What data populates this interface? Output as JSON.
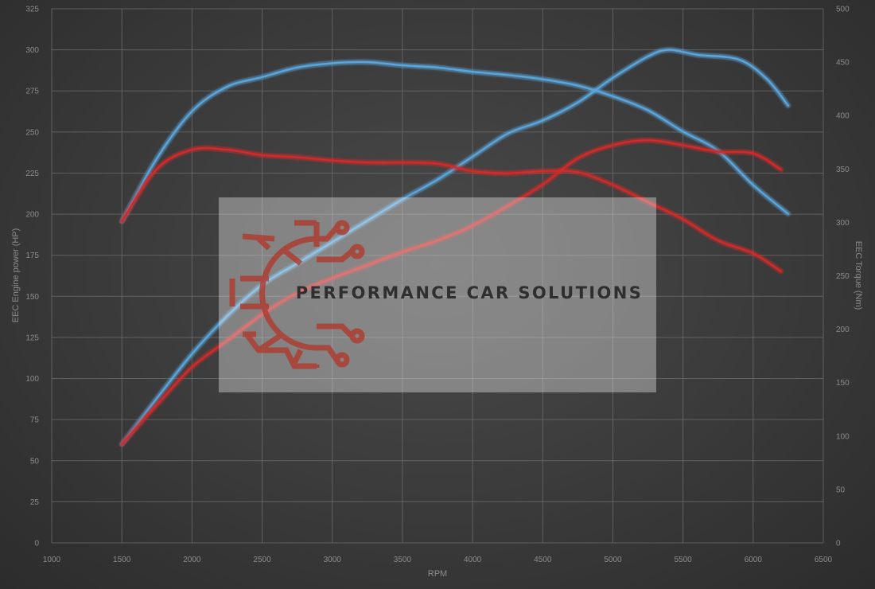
{
  "chart_data": {
    "type": "line",
    "xlabel": "RPM",
    "ylabel_left": "EEC Engine power (HP)",
    "ylabel_right": "EEC Torque (Nm)",
    "xlim": [
      1000,
      6500
    ],
    "ylim_left": [
      0,
      325
    ],
    "ylim_right": [
      0,
      500
    ],
    "x_ticks": [
      1000,
      1500,
      2000,
      2500,
      3000,
      3500,
      4000,
      4500,
      5000,
      5500,
      6000,
      6500
    ],
    "y_left_ticks": [
      0,
      25,
      50,
      75,
      100,
      125,
      150,
      175,
      200,
      225,
      250,
      275,
      300,
      325
    ],
    "y_right_ticks": [
      0,
      50,
      100,
      150,
      200,
      250,
      300,
      350,
      400,
      450,
      500
    ],
    "grid": true,
    "legend": "none",
    "series": [
      {
        "color": "#5aa5dc",
        "axis": "left",
        "points": [
          [
            1500,
            60
          ],
          [
            1750,
            88
          ],
          [
            2000,
            115
          ],
          [
            2250,
            138
          ],
          [
            2500,
            157
          ],
          [
            2750,
            170
          ],
          [
            3000,
            183
          ],
          [
            3250,
            196
          ],
          [
            3500,
            209
          ],
          [
            3750,
            221
          ],
          [
            4000,
            235
          ],
          [
            4250,
            249
          ],
          [
            4500,
            257
          ],
          [
            4750,
            268
          ],
          [
            5000,
            283
          ],
          [
            5250,
            296
          ],
          [
            5400,
            300
          ],
          [
            5600,
            297
          ],
          [
            5900,
            294
          ],
          [
            6100,
            282
          ],
          [
            6250,
            266
          ]
        ]
      },
      {
        "color": "#5aa5dc",
        "axis": "right",
        "points": [
          [
            1500,
            301
          ],
          [
            1750,
            360
          ],
          [
            2000,
            404
          ],
          [
            2250,
            427
          ],
          [
            2500,
            436
          ],
          [
            2750,
            445
          ],
          [
            3000,
            449
          ],
          [
            3250,
            450
          ],
          [
            3500,
            447
          ],
          [
            3750,
            445
          ],
          [
            4000,
            441
          ],
          [
            4250,
            438
          ],
          [
            4500,
            434
          ],
          [
            4750,
            428
          ],
          [
            5000,
            418
          ],
          [
            5250,
            405
          ],
          [
            5500,
            385
          ],
          [
            5750,
            367
          ],
          [
            6000,
            335
          ],
          [
            6250,
            308
          ]
        ]
      },
      {
        "color": "#d02a2a",
        "axis": "left",
        "points": [
          [
            1500,
            60
          ],
          [
            1750,
            84
          ],
          [
            2000,
            107
          ],
          [
            2250,
            123
          ],
          [
            2500,
            139
          ],
          [
            2750,
            152
          ],
          [
            3000,
            161
          ],
          [
            3250,
            169
          ],
          [
            3500,
            177
          ],
          [
            3750,
            184
          ],
          [
            4000,
            193
          ],
          [
            4250,
            205
          ],
          [
            4500,
            218
          ],
          [
            4750,
            234
          ],
          [
            5000,
            242
          ],
          [
            5250,
            245
          ],
          [
            5500,
            242
          ],
          [
            5750,
            238
          ],
          [
            6000,
            237
          ],
          [
            6200,
            227
          ]
        ]
      },
      {
        "color": "#d02a2a",
        "axis": "right",
        "points": [
          [
            1500,
            301
          ],
          [
            1750,
            350
          ],
          [
            2000,
            368
          ],
          [
            2250,
            368
          ],
          [
            2500,
            363
          ],
          [
            2750,
            361
          ],
          [
            3000,
            358
          ],
          [
            3250,
            356
          ],
          [
            3500,
            356
          ],
          [
            3750,
            355
          ],
          [
            4000,
            348
          ],
          [
            4250,
            346
          ],
          [
            4500,
            348
          ],
          [
            4750,
            347
          ],
          [
            5000,
            335
          ],
          [
            5250,
            319
          ],
          [
            5500,
            303
          ],
          [
            5750,
            283
          ],
          [
            6000,
            271
          ],
          [
            6200,
            254
          ]
        ]
      }
    ]
  },
  "watermark": {
    "text": "PERFORMANCE CAR SOLUTIONS",
    "logo_icon": "gear-circuit-logo-icon",
    "logo_color": "#b03a2e"
  }
}
